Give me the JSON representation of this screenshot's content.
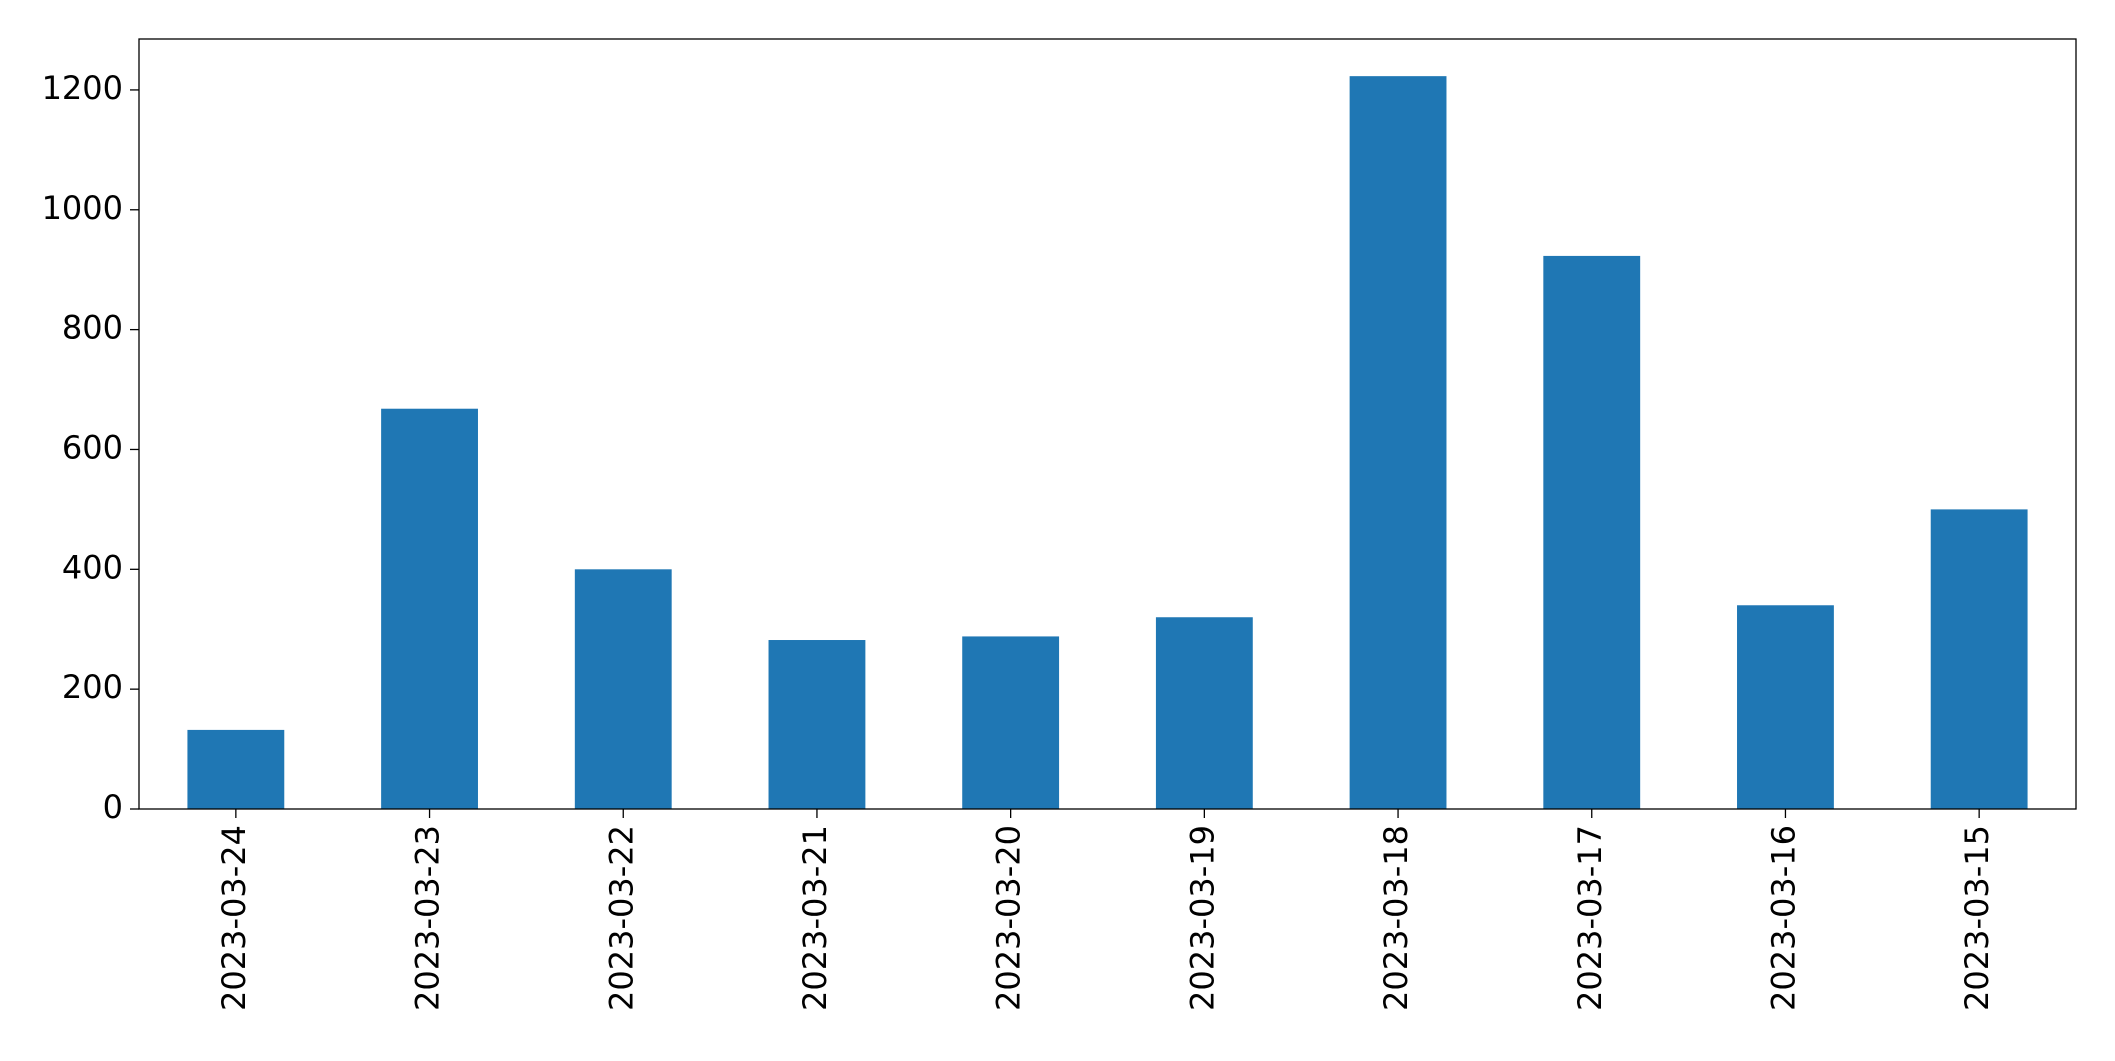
{
  "chart_data": {
    "type": "bar",
    "categories": [
      "2023-03-24",
      "2023-03-23",
      "2023-03-22",
      "2023-03-21",
      "2023-03-20",
      "2023-03-19",
      "2023-03-18",
      "2023-03-17",
      "2023-03-16",
      "2023-03-15"
    ],
    "values": [
      132,
      668,
      400,
      282,
      288,
      320,
      1223,
      923,
      340,
      500
    ],
    "color": "#1f77b4",
    "ylim": [
      0,
      1285
    ],
    "yticks": [
      0,
      200,
      400,
      600,
      800,
      1000,
      1200
    ],
    "grid": false
  }
}
